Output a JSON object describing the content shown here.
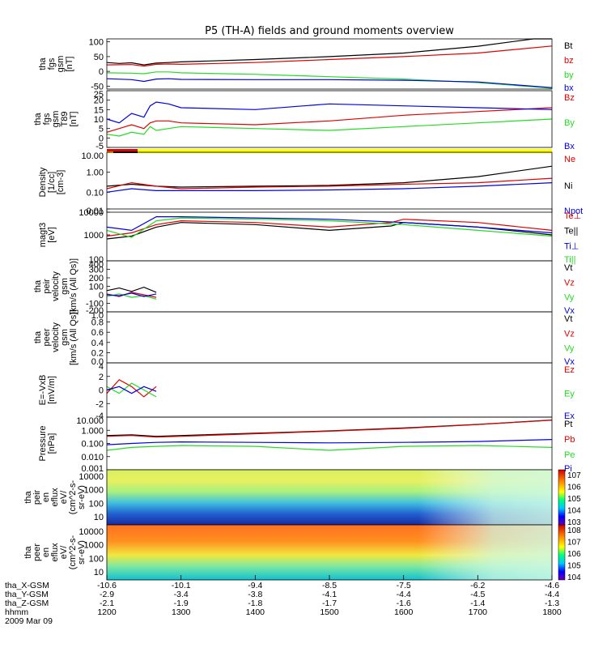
{
  "title": "P5 (TH-A) fields and ground moments overview",
  "colors": {
    "black": "#000000",
    "red": "#e00000",
    "green": "#22dd22",
    "blue": "#0000e0",
    "yellow": "#ffff00"
  },
  "chart_data": [
    {
      "type": "line",
      "ylabel": [
        "tha",
        "fgs",
        "gsm",
        "[nT]"
      ],
      "yticks": [
        "100",
        "50",
        "0",
        "-50"
      ],
      "ylim": [
        -60,
        110
      ],
      "legend": [
        "Bt",
        "bz",
        "by",
        "bx"
      ],
      "series": [
        {
          "name": "Bt",
          "color": "black",
          "x": [
            1200,
            1210,
            1220,
            1230,
            1240,
            1250,
            1300,
            1400,
            1500,
            1600,
            1700,
            1745,
            1800
          ],
          "y": [
            30,
            27,
            29,
            22,
            28,
            30,
            32,
            40,
            50,
            62,
            85,
            110,
            120
          ]
        },
        {
          "name": "bz",
          "color": "red",
          "x": [
            1200,
            1220,
            1230,
            1240,
            1250,
            1300,
            1400,
            1500,
            1600,
            1700,
            1800
          ],
          "y": [
            22,
            23,
            18,
            24,
            25,
            24,
            30,
            40,
            50,
            62,
            86
          ]
        },
        {
          "name": "by",
          "color": "green",
          "x": [
            1200,
            1220,
            1230,
            1240,
            1250,
            1300,
            1400,
            1500,
            1600,
            1700,
            1800
          ],
          "y": [
            -5,
            -6,
            -8,
            -2,
            -2,
            -5,
            -10,
            -18,
            -26,
            -38,
            -57
          ]
        },
        {
          "name": "bx",
          "color": "blue",
          "x": [
            1200,
            1220,
            1230,
            1240,
            1250,
            1300,
            1400,
            1500,
            1600,
            1700,
            1800
          ],
          "y": [
            -25,
            -28,
            -34,
            -26,
            -25,
            -27,
            -28,
            -28,
            -30,
            -36,
            -55
          ]
        }
      ]
    },
    {
      "type": "line",
      "ylabel": [
        "tha",
        "fgs",
        "gsm",
        "T89",
        "[nT]"
      ],
      "yticks": [
        "25",
        "20",
        "15",
        "10",
        "5",
        "0",
        "-5"
      ],
      "ylim": [
        -5,
        25
      ],
      "legend": [
        "Bz",
        "By",
        "Bx"
      ],
      "series": [
        {
          "name": "Bz",
          "color": "red",
          "x": [
            1200,
            1210,
            1220,
            1230,
            1235,
            1240,
            1250,
            1300,
            1400,
            1500,
            1600,
            1700,
            1800
          ],
          "y": [
            3,
            5,
            7,
            5,
            8,
            9,
            9,
            8,
            7,
            9,
            12,
            14,
            16
          ]
        },
        {
          "name": "By",
          "color": "green",
          "x": [
            1200,
            1210,
            1220,
            1230,
            1235,
            1240,
            1250,
            1300,
            1400,
            1500,
            1600,
            1700,
            1800
          ],
          "y": [
            2,
            1,
            3,
            2,
            6,
            4,
            5,
            6,
            5,
            4,
            6,
            8,
            10
          ]
        },
        {
          "name": "Bx",
          "color": "blue",
          "x": [
            1200,
            1210,
            1220,
            1230,
            1235,
            1240,
            1250,
            1300,
            1400,
            1500,
            1600,
            1700,
            1800
          ],
          "y": [
            10,
            8,
            13,
            11,
            17,
            19,
            18,
            16,
            15,
            18,
            17,
            16,
            15
          ]
        }
      ]
    },
    {
      "type": "line",
      "ylabel": [
        "Density",
        "[1/cc]",
        "[cm-3]"
      ],
      "yticks": [
        "10.00",
        "1.00",
        "0.10",
        "0.01"
      ],
      "log": true,
      "ylim": [
        0.01,
        10
      ],
      "legend": [
        "Ne",
        "Ni",
        "Npot"
      ],
      "series": [
        {
          "name": "Ni",
          "color": "black",
          "x": [
            1200,
            1220,
            1240,
            1300,
            1400,
            1500,
            1600,
            1700,
            1800
          ],
          "y": [
            0.2,
            0.25,
            0.2,
            0.18,
            0.2,
            0.22,
            0.3,
            0.6,
            2.0
          ]
        },
        {
          "name": "Ne",
          "color": "red",
          "x": [
            1200,
            1220,
            1240,
            1300,
            1400,
            1500,
            1600,
            1700,
            1800
          ],
          "y": [
            0.15,
            0.3,
            0.2,
            0.15,
            0.18,
            0.2,
            0.25,
            0.3,
            0.5
          ]
        },
        {
          "name": "Npot",
          "color": "blue",
          "x": [
            1200,
            1220,
            1240,
            1300,
            1400,
            1500,
            1600,
            1700,
            1800
          ],
          "y": [
            0.1,
            0.15,
            0.12,
            0.12,
            0.12,
            0.13,
            0.15,
            0.2,
            0.3
          ]
        }
      ]
    },
    {
      "type": "line",
      "ylabel": [
        "magt3",
        "[eV]"
      ],
      "yticks": [
        "10000",
        "1000",
        "100"
      ],
      "log": true,
      "ylim": [
        100,
        10000
      ],
      "legend": [
        "Te⊥",
        "Te||",
        "Ti⊥",
        "Ti||"
      ],
      "series": [
        {
          "name": "Te⊥",
          "color": "red",
          "x": [
            1200,
            1220,
            1240,
            1300,
            1400,
            1500,
            1550,
            1600,
            1700,
            1800
          ],
          "y": [
            900,
            1200,
            2500,
            3500,
            3000,
            2000,
            3000,
            4000,
            3000,
            1500
          ]
        },
        {
          "name": "Te||",
          "color": "black",
          "x": [
            1200,
            1220,
            1240,
            1300,
            1400,
            1500,
            1550,
            1600,
            1700,
            1800
          ],
          "y": [
            700,
            900,
            2000,
            3000,
            2500,
            1500,
            2200,
            3000,
            2000,
            1000
          ]
        },
        {
          "name": "Ti⊥",
          "color": "blue",
          "x": [
            1200,
            1220,
            1240,
            1300,
            1400,
            1500,
            1600,
            1700,
            1800
          ],
          "y": [
            2000,
            1500,
            5000,
            5000,
            4500,
            4000,
            3000,
            2000,
            1200
          ]
        },
        {
          "name": "Ti||",
          "color": "green",
          "x": [
            1200,
            1220,
            1240,
            1300,
            1400,
            1500,
            1600,
            1700,
            1800
          ],
          "y": [
            1500,
            800,
            3500,
            4500,
            4000,
            3500,
            2500,
            1500,
            900
          ]
        }
      ]
    },
    {
      "type": "line",
      "ylabel": [
        "tha",
        "peir",
        "velocity",
        "gsm",
        "[km/s (All Qs)]"
      ],
      "yticks": [
        "400",
        "300",
        "200",
        "100",
        "0",
        "-100",
        "-200"
      ],
      "ylim": [
        -200,
        400
      ],
      "legend": [
        "Vt",
        "Vz",
        "Vy",
        "Vx"
      ],
      "series": [
        {
          "name": "Vt",
          "color": "black",
          "x": [
            1200,
            1210,
            1220,
            1230,
            1240
          ],
          "y": [
            50,
            80,
            40,
            90,
            30
          ]
        },
        {
          "name": "Vz",
          "color": "red",
          "x": [
            1200,
            1210,
            1220,
            1230,
            1240
          ],
          "y": [
            10,
            -20,
            30,
            0,
            -30
          ]
        },
        {
          "name": "Vy",
          "color": "green",
          "x": [
            1200,
            1210,
            1220,
            1230,
            1240
          ],
          "y": [
            -20,
            10,
            -30,
            -10,
            -50
          ]
        },
        {
          "name": "Vx",
          "color": "blue",
          "x": [
            1200,
            1210,
            1220,
            1230,
            1240
          ],
          "y": [
            0,
            -10,
            20,
            -20,
            10
          ]
        }
      ]
    },
    {
      "type": "line",
      "ylabel": [
        "tha",
        "peer",
        "velocity",
        "gsm",
        "[km/s (All Qs)]"
      ],
      "yticks": [
        "1.0",
        "0.8",
        "0.6",
        "0.4",
        "0.2",
        "0.0"
      ],
      "ylim": [
        0,
        1
      ],
      "legend": [
        "Vt",
        "Vz",
        "Vy",
        "Vx"
      ],
      "series": []
    },
    {
      "type": "line",
      "ylabel": [
        "E=-VxB",
        "[mV/m]"
      ],
      "yticks": [
        "4",
        "2",
        "0",
        "-2",
        "-4"
      ],
      "ylim": [
        -4,
        4
      ],
      "legend": [
        "Ez",
        "Ey",
        "Ex"
      ],
      "series": [
        {
          "name": "Ez",
          "color": "red",
          "x": [
            1200,
            1210,
            1220,
            1230,
            1240
          ],
          "y": [
            -0.5,
            1.5,
            0.5,
            -1,
            0.5
          ]
        },
        {
          "name": "Ey",
          "color": "green",
          "x": [
            1200,
            1210,
            1220,
            1230,
            1240
          ],
          "y": [
            0.5,
            -0.5,
            1,
            0,
            -1
          ]
        },
        {
          "name": "Ex",
          "color": "blue",
          "x": [
            1200,
            1210,
            1220,
            1230,
            1240
          ],
          "y": [
            0,
            0.5,
            -0.5,
            0.5,
            -0.2
          ]
        }
      ]
    },
    {
      "type": "line",
      "ylabel": [
        "Pressure",
        "[nPa]"
      ],
      "yticks": [
        "10.000",
        "1.000",
        "0.100",
        "0.010",
        "0.001"
      ],
      "log": true,
      "ylim": [
        0.001,
        10
      ],
      "legend": [
        "Pt",
        "Pb",
        "Pe",
        "Pi"
      ],
      "series": [
        {
          "name": "Pt",
          "color": "black",
          "x": [
            1200,
            1220,
            1240,
            1300,
            1400,
            1500,
            1600,
            1700,
            1800
          ],
          "y": [
            0.4,
            0.45,
            0.35,
            0.4,
            0.6,
            0.9,
            1.5,
            2.8,
            6.0
          ]
        },
        {
          "name": "Pb",
          "color": "red",
          "x": [
            1200,
            1220,
            1240,
            1300,
            1400,
            1500,
            1600,
            1700,
            1800
          ],
          "y": [
            0.35,
            0.4,
            0.3,
            0.35,
            0.55,
            0.85,
            1.4,
            2.7,
            5.8
          ]
        },
        {
          "name": "Pe",
          "color": "green",
          "x": [
            1200,
            1220,
            1240,
            1300,
            1400,
            1500,
            1600,
            1700,
            1800
          ],
          "y": [
            0.03,
            0.05,
            0.06,
            0.07,
            0.06,
            0.03,
            0.06,
            0.07,
            0.05
          ]
        },
        {
          "name": "Pi",
          "color": "blue",
          "x": [
            1200,
            1220,
            1240,
            1300,
            1400,
            1500,
            1600,
            1700,
            1800
          ],
          "y": [
            0.08,
            0.1,
            0.12,
            0.13,
            0.12,
            0.11,
            0.12,
            0.14,
            0.2
          ]
        }
      ]
    },
    {
      "type": "heatmap",
      "ylabel": [
        "tha",
        "peir",
        "en",
        "eflux",
        "eV/",
        "(cm^2-s-",
        "sr-eV)"
      ],
      "yticks": [
        "10000",
        "1000",
        "100",
        "10"
      ],
      "colorbar": [
        "10^7",
        "10^6",
        "10^5",
        "10^4",
        "10^3"
      ]
    },
    {
      "type": "heatmap",
      "ylabel": [
        "tha",
        "peer",
        "en",
        "eflux",
        "eV/",
        "(cm^2-s-",
        "sr-eV)"
      ],
      "yticks": [
        "10000",
        "1000",
        "100",
        "10"
      ],
      "colorbar": [
        "10^8",
        "10^7",
        "10^6",
        "10^5",
        "10^4"
      ]
    }
  ],
  "xaxis": {
    "ticks": [
      {
        "hhmm": "1200",
        "x": "-10.6",
        "y": "-2.9",
        "z": "-2.1"
      },
      {
        "hhmm": "1300",
        "x": "-10.1",
        "y": "-3.4",
        "z": "-1.9"
      },
      {
        "hhmm": "1400",
        "x": "-9.4",
        "y": "-3.8",
        "z": "-1.8"
      },
      {
        "hhmm": "1500",
        "x": "-8.5",
        "y": "-4.1",
        "z": "-1.7"
      },
      {
        "hhmm": "1600",
        "x": "-7.5",
        "y": "-4.4",
        "z": "-1.6"
      },
      {
        "hhmm": "1700",
        "x": "-6.2",
        "y": "-4.5",
        "z": "-1.4"
      },
      {
        "hhmm": "1800",
        "x": "-4.6",
        "y": "-4.4",
        "z": "-1.3"
      }
    ],
    "row_labels": [
      "tha_X-GSM",
      "tha_Y-GSM",
      "tha_Z-GSM",
      "hhmm",
      "2009 Mar 09"
    ]
  }
}
